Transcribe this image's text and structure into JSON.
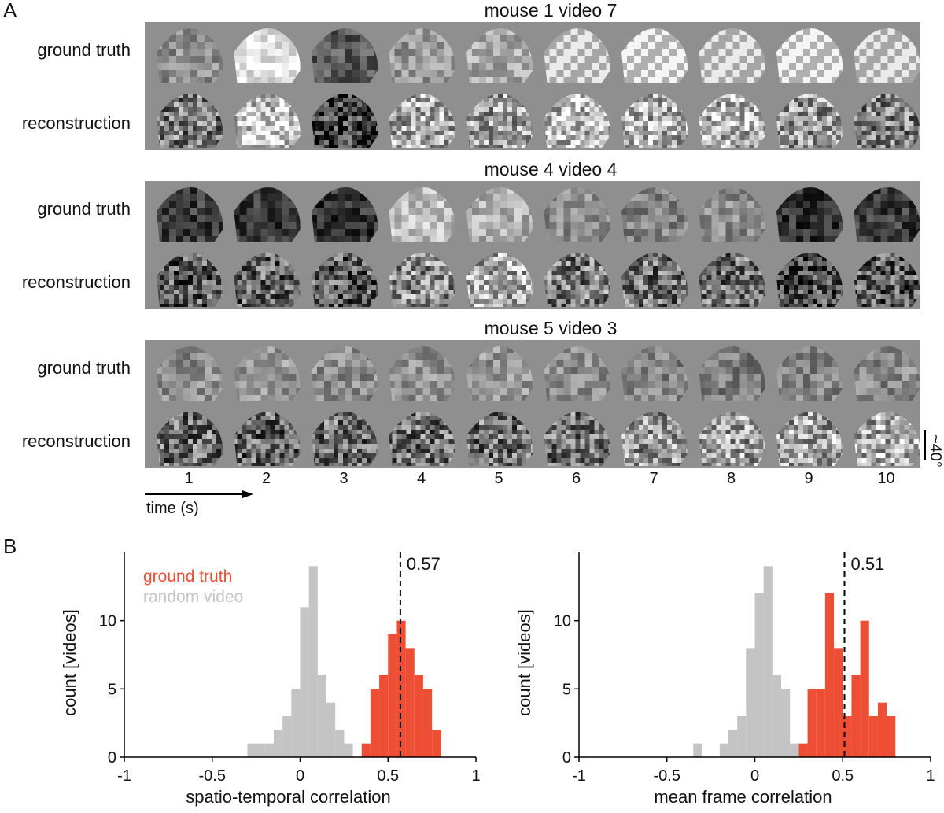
{
  "panels": {
    "a_label": "A",
    "b_label": "B"
  },
  "panel_a": {
    "groups": [
      {
        "title": "mouse 1 video 7",
        "row_labels": [
          "ground truth",
          "reconstruction"
        ]
      },
      {
        "title": "mouse 4 video 4",
        "row_labels": [
          "ground truth",
          "reconstruction"
        ]
      },
      {
        "title": "mouse 5 video 3",
        "row_labels": [
          "ground truth",
          "reconstruction"
        ]
      }
    ],
    "time_ticks": [
      "1",
      "2",
      "3",
      "4",
      "5",
      "6",
      "7",
      "8",
      "9",
      "10"
    ],
    "time_axis_label": "time (s)",
    "scale_label": "~40°"
  },
  "chart_data": [
    {
      "type": "bar",
      "xlabel": "spatio-temporal correlation",
      "ylabel": "count [videos]",
      "xlim": [
        -1,
        1
      ],
      "ylim": [
        0,
        15
      ],
      "xticks": [
        "-1",
        "-0.5",
        "0",
        "0.5",
        "1"
      ],
      "yticks": [
        "0",
        "5",
        "10"
      ],
      "bin_width": 0.05,
      "series": [
        {
          "name": "random video",
          "color": "#c4c4c4",
          "bins": [
            [
              -0.3,
              1
            ],
            [
              -0.25,
              1
            ],
            [
              -0.2,
              1
            ],
            [
              -0.15,
              2
            ],
            [
              -0.1,
              3
            ],
            [
              -0.05,
              5
            ],
            [
              0.0,
              11
            ],
            [
              0.05,
              14
            ],
            [
              0.1,
              6
            ],
            [
              0.15,
              4
            ],
            [
              0.2,
              2
            ],
            [
              0.25,
              1
            ]
          ]
        },
        {
          "name": "ground truth",
          "color": "#ee4e33",
          "bins": [
            [
              0.35,
              1
            ],
            [
              0.4,
              5
            ],
            [
              0.45,
              6
            ],
            [
              0.5,
              9
            ],
            [
              0.55,
              10
            ],
            [
              0.6,
              8
            ],
            [
              0.65,
              6
            ],
            [
              0.7,
              5
            ],
            [
              0.75,
              2
            ]
          ]
        }
      ],
      "vline": {
        "x": 0.57,
        "label": "0.57"
      },
      "legend": "top-left"
    },
    {
      "type": "bar",
      "xlabel": "mean frame correlation",
      "ylabel": "count [videos]",
      "xlim": [
        -1,
        1
      ],
      "ylim": [
        0,
        15
      ],
      "xticks": [
        "-1",
        "-0.5",
        "0",
        "0.5",
        "1"
      ],
      "yticks": [
        "0",
        "5",
        "10"
      ],
      "bin_width": 0.05,
      "series": [
        {
          "name": "random video",
          "color": "#c4c4c4",
          "bins": [
            [
              -0.35,
              1
            ],
            [
              -0.2,
              1
            ],
            [
              -0.15,
              2
            ],
            [
              -0.1,
              3
            ],
            [
              -0.05,
              8
            ],
            [
              0.0,
              12
            ],
            [
              0.05,
              14
            ],
            [
              0.1,
              6
            ],
            [
              0.15,
              5
            ],
            [
              0.2,
              1
            ]
          ]
        },
        {
          "name": "ground truth",
          "color": "#ee4e33",
          "bins": [
            [
              0.25,
              1
            ],
            [
              0.3,
              5
            ],
            [
              0.35,
              5
            ],
            [
              0.4,
              12
            ],
            [
              0.45,
              8
            ],
            [
              0.5,
              3
            ],
            [
              0.55,
              6
            ],
            [
              0.6,
              10
            ],
            [
              0.65,
              3
            ],
            [
              0.7,
              4
            ],
            [
              0.75,
              3
            ]
          ]
        }
      ],
      "vline": {
        "x": 0.51,
        "label": "0.51"
      }
    }
  ]
}
